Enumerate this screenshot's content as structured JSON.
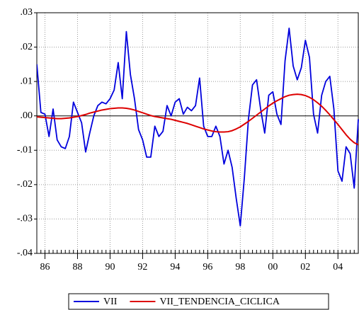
{
  "chart_data": {
    "type": "line",
    "x": [
      1985.5,
      1985.75,
      1986,
      1986.25,
      1986.5,
      1986.75,
      1987,
      1987.25,
      1987.5,
      1987.75,
      1988,
      1988.25,
      1988.5,
      1988.75,
      1989,
      1989.25,
      1989.5,
      1989.75,
      1990,
      1990.25,
      1990.5,
      1990.75,
      1991,
      1991.25,
      1991.5,
      1991.75,
      1992,
      1992.25,
      1992.5,
      1992.75,
      1993,
      1993.25,
      1993.5,
      1993.75,
      1994,
      1994.25,
      1994.5,
      1994.75,
      1995,
      1995.25,
      1995.5,
      1995.75,
      1996,
      1996.25,
      1996.5,
      1996.75,
      1997,
      1997.25,
      1997.5,
      1997.75,
      1998,
      1998.25,
      1998.5,
      1998.75,
      1999,
      1999.25,
      1999.5,
      1999.75,
      2000,
      2000.25,
      2000.5,
      2000.75,
      2001,
      2001.25,
      2001.5,
      2001.75,
      2002,
      2002.25,
      2002.5,
      2002.75,
      2003,
      2003.25,
      2003.5,
      2003.75,
      2004,
      2004.25,
      2004.5,
      2004.75,
      2005,
      2005.25
    ],
    "series": [
      {
        "name": "VII",
        "color": "#0000dd",
        "values": [
          0.015,
          0.001,
          0.0005,
          -0.006,
          0.002,
          -0.007,
          -0.009,
          -0.0095,
          -0.006,
          0.004,
          0.001,
          -0.002,
          -0.0105,
          -0.005,
          0,
          0.003,
          0.004,
          0.0035,
          0.005,
          0.0075,
          0.0155,
          0.005,
          0.0245,
          0.012,
          0.005,
          -0.004,
          -0.007,
          -0.012,
          -0.012,
          -0.003,
          -0.006,
          -0.0045,
          0.003,
          0,
          0.004,
          0.005,
          0.0005,
          0.0025,
          0.0015,
          0.003,
          0.011,
          -0.003,
          -0.006,
          -0.006,
          -0.003,
          -0.006,
          -0.014,
          -0.01,
          -0.015,
          -0.024,
          -0.032,
          -0.018,
          -0.001,
          0.009,
          0.0105,
          0.002,
          -0.005,
          0.006,
          0.007,
          0.0005,
          -0.0025,
          0.016,
          0.0255,
          0.0145,
          0.0105,
          0.014,
          0.022,
          0.017,
          0.0005,
          -0.005,
          0.006,
          0.01,
          0.0115,
          0.002,
          -0.016,
          -0.019,
          -0.009,
          -0.011,
          -0.021,
          -0.001
        ]
      },
      {
        "name": "VII_TENDENCIA_CICLICA",
        "color": "#dd0000",
        "values": [
          -0.0003,
          -0.0004,
          -0.0005,
          -0.0006,
          -0.0007,
          -0.0008,
          -0.0008,
          -0.0007,
          -0.0006,
          -0.0004,
          -0.0002,
          0.0001,
          0.0004,
          0.0008,
          0.0011,
          0.0014,
          0.0017,
          0.0019,
          0.0021,
          0.0022,
          0.0023,
          0.0023,
          0.0022,
          0.002,
          0.0017,
          0.0013,
          0.0009,
          0.0005,
          0.0001,
          -0.0002,
          -0.0004,
          -0.0006,
          -0.0008,
          -0.001,
          -0.0013,
          -0.0016,
          -0.0019,
          -0.0022,
          -0.0026,
          -0.003,
          -0.0034,
          -0.0038,
          -0.0041,
          -0.0044,
          -0.0046,
          -0.0047,
          -0.0047,
          -0.0046,
          -0.0043,
          -0.0038,
          -0.0032,
          -0.0024,
          -0.0016,
          -0.0007,
          0.0002,
          0.0011,
          0.002,
          0.0029,
          0.0037,
          0.0044,
          0.005,
          0.0056,
          0.006,
          0.0062,
          0.0063,
          0.0062,
          0.0059,
          0.0054,
          0.0047,
          0.0038,
          0.0028,
          0.0016,
          0.0003,
          -0.0011,
          -0.0025,
          -0.004,
          -0.0055,
          -0.0068,
          -0.0078,
          -0.0084
        ]
      }
    ],
    "xlim": [
      1985.5,
      2005.25
    ],
    "xticks": [
      {
        "value": 1986,
        "label": "86"
      },
      {
        "value": 1988,
        "label": "88"
      },
      {
        "value": 1990,
        "label": "90"
      },
      {
        "value": 1992,
        "label": "92"
      },
      {
        "value": 1994,
        "label": "94"
      },
      {
        "value": 1996,
        "label": "96"
      },
      {
        "value": 1998,
        "label": "98"
      },
      {
        "value": 2000,
        "label": "00"
      },
      {
        "value": 2002,
        "label": "02"
      },
      {
        "value": 2004,
        "label": "04"
      }
    ],
    "ylim": [
      -0.04,
      0.03
    ],
    "yticks": [
      {
        "value": -0.04,
        "label": "-.04"
      },
      {
        "value": -0.03,
        "label": "-.03"
      },
      {
        "value": -0.02,
        "label": "-.02"
      },
      {
        "value": -0.01,
        "label": "-.01"
      },
      {
        "value": 0,
        "label": ".00"
      },
      {
        "value": 0.01,
        "label": ".01"
      },
      {
        "value": 0.02,
        "label": ".02"
      },
      {
        "value": 0.03,
        "label": ".03"
      }
    ],
    "grid": true,
    "legend": "bottom"
  }
}
